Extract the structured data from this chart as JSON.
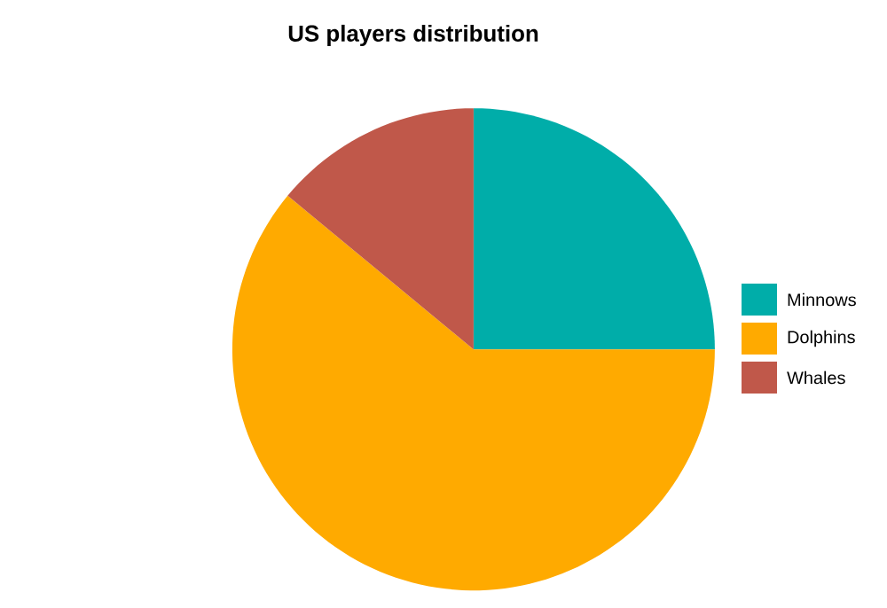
{
  "chart_data": {
    "type": "pie",
    "title": "US players distribution",
    "categories": [
      "Minnows",
      "Dolphins",
      "Whales"
    ],
    "values": [
      25,
      61,
      14
    ],
    "colors": [
      "#00ada9",
      "#ffaa00",
      "#c0584a"
    ],
    "legend": "right"
  }
}
